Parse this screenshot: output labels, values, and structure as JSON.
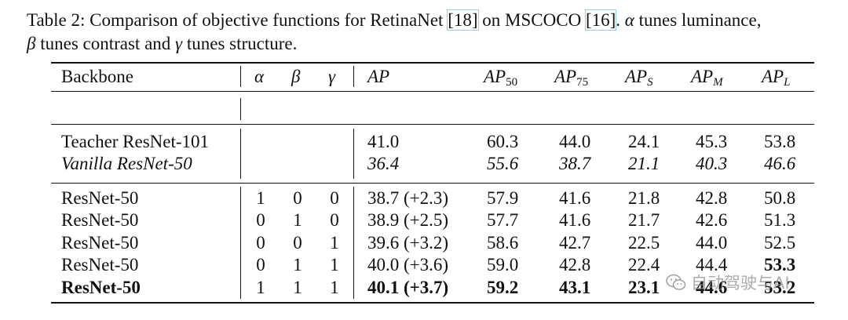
{
  "caption": {
    "prefix": "Table 2: Comparison of objective functions for RetinaNet ",
    "ref1": "[18]",
    "mid": " on MSCOCO ",
    "ref2": "[16]",
    "after_ref2": ". ",
    "alpha": "α",
    "alpha_text": " tunes luminance,",
    "beta": "β",
    "beta_text": " tunes contrast and ",
    "gamma": "γ",
    "gamma_text": " tunes structure."
  },
  "table": {
    "headers": {
      "backbone": "Backbone",
      "alpha": "α",
      "beta": "β",
      "gamma": "γ",
      "ap": "AP",
      "ap50": {
        "base": "AP",
        "sub": "50"
      },
      "ap75": {
        "base": "AP",
        "sub": "75"
      },
      "aps": {
        "base": "AP",
        "sub": "S"
      },
      "apm": {
        "base": "AP",
        "sub": "M"
      },
      "apl": {
        "base": "AP",
        "sub": "L"
      }
    },
    "baselines": [
      {
        "backbone": "Teacher ResNet-101",
        "ap": "41.0",
        "ap50": "60.3",
        "ap75": "44.0",
        "aps": "24.1",
        "apm": "45.3",
        "apl": "53.8"
      },
      {
        "backbone": "Vanilla ResNet-50",
        "ap": "36.4",
        "ap50": "55.6",
        "ap75": "38.7",
        "aps": "21.1",
        "apm": "40.3",
        "apl": "46.6"
      }
    ],
    "rows": [
      {
        "backbone": "ResNet-50",
        "alpha": "1",
        "beta": "0",
        "gamma": "0",
        "ap": "38.7 (+2.3)",
        "ap50": "57.9",
        "ap75": "41.6",
        "aps": "21.8",
        "apm": "42.8",
        "apl": "50.8"
      },
      {
        "backbone": "ResNet-50",
        "alpha": "0",
        "beta": "1",
        "gamma": "0",
        "ap": "38.9 (+2.5)",
        "ap50": "57.7",
        "ap75": "41.6",
        "aps": "21.7",
        "apm": "42.6",
        "apl": "51.3"
      },
      {
        "backbone": "ResNet-50",
        "alpha": "0",
        "beta": "0",
        "gamma": "1",
        "ap": "39.6 (+3.2)",
        "ap50": "58.6",
        "ap75": "42.7",
        "aps": "22.5",
        "apm": "44.0",
        "apl": "52.5"
      },
      {
        "backbone": "ResNet-50",
        "alpha": "0",
        "beta": "1",
        "gamma": "1",
        "ap": "40.0 (+3.6)",
        "ap50": "59.0",
        "ap75": "42.8",
        "aps": "22.4",
        "apm": "44.4",
        "apl": "53.3"
      },
      {
        "backbone": "ResNet-50",
        "alpha": "1",
        "beta": "1",
        "gamma": "1",
        "ap": "40.1 (+3.7)",
        "ap50": "59.2",
        "ap75": "43.1",
        "aps": "23.1",
        "apm": "44.6",
        "apl": "53.2"
      }
    ]
  },
  "watermark": {
    "text": "自动驾驶与AI",
    "icon": "wechat-icon"
  }
}
